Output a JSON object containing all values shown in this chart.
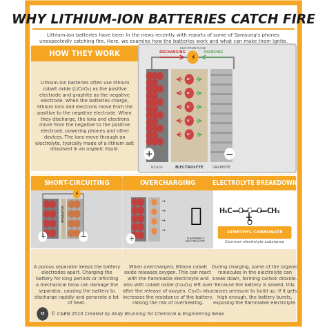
{
  "title": "WHY LITHIUM-ION BATTERIES CATCH FIRE",
  "subtitle": "Lithium-ion batteries have been in the news recently with reports of some of Samsung's phones\nunexpectedly catching fire. Here, we examine how the batteries work and what can make them ignite.",
  "bg_color": "#FFFFFF",
  "border_color": "#F5A623",
  "title_color": "#1A1A1A",
  "orange_color": "#F5A623",
  "light_orange": "#F5E6C8",
  "gray_color": "#AAAAAA",
  "dark_gray": "#444444",
  "red_color": "#CC3333",
  "green_color": "#5BAD5B",
  "bat_gray": "#8A8A8A",
  "elec_tan": "#D4C5A9",
  "graphite_gray": "#CCCCCC",
  "section_bg": "#E8E0D0",
  "section_headers": [
    "HOW THEY WORK",
    "SHORT-CIRCUITING",
    "OVERCHARGING",
    "ELECTROLYTE BREAKDOWN"
  ],
  "footer": "© C&EN 2016 Created by Andy Brunning for Chemical & Engineering News",
  "how_they_work_text": "Lithium-ion batteries often use lithium\ncobalt oxide (LiCoO₂) as the positive\nelectrode and graphite as the negative\nelectrode. When the batteries charge,\nlithium ions and electrons move from the\npositive to the negative electrode. When\nthey discharge, the ions and electrons\nmove from the negative to the positive\nelectrode, powering phones and other\ndevices. The ions move through an\nelectrolyte, typically made of a lithium salt\ndissolved in an organic liquid.",
  "short_circuit_text": "A porous separator keeps the battery\nelectrodes apart. Charging the\nbattery for long periods or inflicting\na mechanical blow can damage the\nseparator, causing the battery to\ndischarge rapidly and generate a lot\nof heat.",
  "overcharging_text": "When overcharged, lithium cobalt\noxide releases oxygen. This can react\nwith the flammable electrolyte and\nalso with cobalt oxide (Co₃O₄) left over\nafter the release of oxygen. Co₃O₄ also\nincreases the resistance of the battery,\nraising the risk of overheating.",
  "electrolyte_text": "During charging, some of the organic\nmolecules in the electrolyte can\nbreak down, forming carbon dioxide.\nBecause the battery is sealed, this\ncauses pressure to build up. If it gets\nhigh enough, the battery bursts,\nexposing the flammable electrolyte."
}
